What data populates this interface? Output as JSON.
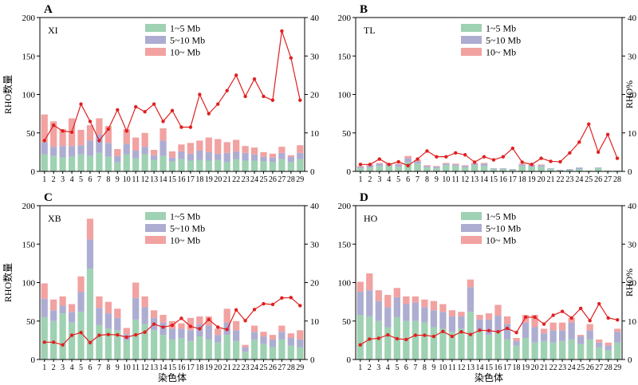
{
  "figure": {
    "xlabel": "染色体",
    "ylabel_left": "RHO数量",
    "ylabel_right": "RHO%",
    "legend": [
      "1~5 Mb",
      "5~10 Mb",
      "10~ Mb"
    ],
    "colors": {
      "s1": "#9fd1b3",
      "s2": "#adadd2",
      "s3": "#f1a2a1",
      "line": "#e02020"
    }
  },
  "chart_data": [
    {
      "type": "bar",
      "panel": "A",
      "name": "XI",
      "categories": [
        "1",
        "2",
        "3",
        "4",
        "5",
        "6",
        "7",
        "8",
        "9",
        "10",
        "11",
        "12",
        "13",
        "14",
        "15",
        "16",
        "17",
        "18",
        "19",
        "20",
        "21",
        "22",
        "23",
        "24",
        "25",
        "26",
        "27",
        "28",
        "29"
      ],
      "series": [
        {
          "name": "1~5 Mb",
          "values": [
            22,
            20,
            18,
            19,
            22,
            20,
            24,
            19,
            12,
            22,
            17,
            22,
            15,
            20,
            13,
            16,
            14,
            15,
            14,
            15,
            12,
            16,
            14,
            14,
            13,
            12,
            16,
            12,
            16
          ]
        },
        {
          "name": "5~10 Mb",
          "values": [
            16,
            12,
            15,
            14,
            12,
            20,
            24,
            18,
            8,
            14,
            10,
            10,
            6,
            20,
            5,
            10,
            9,
            12,
            11,
            8,
            12,
            10,
            10,
            8,
            6,
            6,
            8,
            7,
            8
          ]
        },
        {
          "name": "10~ Mb",
          "values": [
            36,
            33,
            22,
            36,
            20,
            20,
            21,
            22,
            9,
            19,
            17,
            18,
            7,
            16,
            8,
            9,
            14,
            13,
            19,
            19,
            14,
            15,
            9,
            9,
            6,
            5,
            8,
            2,
            10
          ]
        },
        {
          "name": "RHO%",
          "axis": "right",
          "values": [
            8,
            12,
            10.5,
            10.2,
            17.5,
            13,
            8,
            11,
            16,
            10.5,
            16.8,
            15.5,
            17.5,
            13,
            15.8,
            11.5,
            11.5,
            20,
            15,
            17.5,
            21,
            25,
            19.5,
            24,
            19.5,
            18.5,
            36.5,
            29.5,
            18.5
          ]
        }
      ],
      "ylim_left": [
        0,
        200
      ],
      "ylim_right": [
        0,
        40
      ]
    },
    {
      "type": "bar",
      "panel": "B",
      "name": "TL",
      "categories": [
        "1",
        "2",
        "3",
        "4",
        "5",
        "6",
        "7",
        "8",
        "9",
        "10",
        "11",
        "12",
        "13",
        "14",
        "15",
        "16",
        "17",
        "18",
        "19",
        "20",
        "21",
        "22",
        "23",
        "24",
        "25",
        "26",
        "27",
        "28"
      ],
      "series": [
        {
          "name": "1~5 Mb",
          "values": [
            4,
            5,
            7,
            7,
            6,
            12,
            10,
            5,
            4,
            8,
            7,
            5,
            8,
            7,
            3,
            3,
            2,
            7,
            6,
            6,
            3,
            1,
            2,
            3,
            1,
            4,
            1,
            1
          ]
        },
        {
          "name": "5~10 Mb",
          "values": [
            2,
            3,
            3,
            2,
            3,
            5,
            3,
            2,
            2,
            2,
            2,
            2,
            2,
            3,
            1,
            1,
            1,
            2,
            2,
            2,
            1,
            1,
            1,
            2,
            0,
            1,
            0,
            0
          ]
        },
        {
          "name": "10~ Mb",
          "values": [
            1,
            1,
            1,
            1,
            1,
            3,
            2,
            1,
            1,
            1,
            1,
            1,
            1,
            1,
            0,
            0,
            0,
            1,
            1,
            1,
            0,
            0,
            0,
            0,
            0,
            0,
            0,
            0
          ]
        },
        {
          "name": "RHO%",
          "axis": "right",
          "values": [
            1.8,
            1.8,
            3.2,
            1.8,
            2.5,
            1.5,
            3.2,
            5.3,
            3.8,
            3.8,
            4.8,
            4.3,
            2.4,
            3.8,
            3,
            3.8,
            6,
            2.4,
            1.8,
            3.4,
            2.6,
            2.5,
            4.8,
            7.6,
            12.3,
            5,
            9.6,
            3.4
          ]
        }
      ],
      "ylim_left": [
        0,
        200
      ],
      "ylim_right": [
        0,
        40
      ]
    },
    {
      "type": "bar",
      "panel": "C",
      "name": "XB",
      "categories": [
        "1",
        "2",
        "3",
        "4",
        "5",
        "6",
        "7",
        "8",
        "9",
        "10",
        "11",
        "12",
        "13",
        "14",
        "15",
        "16",
        "17",
        "18",
        "19",
        "20",
        "21",
        "22",
        "23",
        "24",
        "25",
        "26",
        "27",
        "28",
        "29"
      ],
      "series": [
        {
          "name": "1~5 Mb",
          "values": [
            55,
            50,
            60,
            48,
            62,
            118,
            45,
            40,
            38,
            25,
            52,
            46,
            38,
            32,
            26,
            28,
            24,
            30,
            26,
            22,
            32,
            24,
            10,
            26,
            20,
            16,
            26,
            18,
            16
          ]
        },
        {
          "name": "5~10 Mb",
          "values": [
            24,
            14,
            10,
            14,
            26,
            38,
            22,
            20,
            16,
            8,
            28,
            22,
            16,
            16,
            14,
            12,
            14,
            16,
            18,
            10,
            16,
            14,
            6,
            10,
            10,
            10,
            10,
            10,
            10
          ]
        },
        {
          "name": "10~ Mb",
          "values": [
            20,
            14,
            12,
            10,
            20,
            27,
            15,
            15,
            12,
            8,
            20,
            14,
            10,
            10,
            10,
            7,
            16,
            10,
            12,
            8,
            18,
            12,
            3,
            8,
            6,
            6,
            8,
            6,
            12
          ]
        },
        {
          "name": "RHO%",
          "axis": "right",
          "values": [
            4.5,
            4.5,
            3.8,
            6.3,
            7,
            4.4,
            6.3,
            6.5,
            6.4,
            5.8,
            6.4,
            7.1,
            9.2,
            8.4,
            8.9,
            10.7,
            8.6,
            8,
            10.4,
            8.4,
            7.8,
            12.9,
            10.1,
            13,
            14.5,
            14.3,
            16,
            16.1,
            14
          ]
        }
      ],
      "ylim_left": [
        0,
        200
      ],
      "ylim_right": [
        0,
        40
      ]
    },
    {
      "type": "bar",
      "panel": "D",
      "name": "HO",
      "categories": [
        "1",
        "2",
        "3",
        "4",
        "5",
        "6",
        "7",
        "8",
        "9",
        "10",
        "11",
        "12",
        "13",
        "14",
        "15",
        "16",
        "17",
        "18",
        "19",
        "20",
        "21",
        "22",
        "23",
        "24",
        "25",
        "26",
        "27",
        "28",
        "29"
      ],
      "series": [
        {
          "name": "1~5 Mb",
          "values": [
            58,
            56,
            50,
            42,
            55,
            50,
            50,
            48,
            42,
            40,
            36,
            40,
            62,
            38,
            32,
            35,
            26,
            18,
            28,
            22,
            24,
            22,
            24,
            26,
            20,
            26,
            16,
            12,
            22
          ]
        },
        {
          "name": "5~10 Mb",
          "values": [
            30,
            34,
            26,
            26,
            26,
            22,
            24,
            20,
            22,
            22,
            20,
            16,
            32,
            14,
            20,
            22,
            20,
            6,
            20,
            20,
            10,
            16,
            14,
            22,
            10,
            12,
            6,
            6,
            14
          ]
        },
        {
          "name": "10~ Mb",
          "values": [
            13,
            22,
            14,
            16,
            12,
            10,
            8,
            10,
            12,
            10,
            8,
            6,
            10,
            6,
            8,
            14,
            10,
            4,
            10,
            16,
            6,
            10,
            10,
            6,
            2,
            8,
            4,
            4,
            4
          ]
        },
        {
          "name": "RHO%",
          "axis": "right",
          "values": [
            3.8,
            5.3,
            5.5,
            6.4,
            5.4,
            5.2,
            6.3,
            6.3,
            6,
            7.3,
            6,
            7.2,
            6.5,
            7.6,
            7.5,
            7.2,
            8.1,
            7,
            11,
            11,
            9.2,
            11.5,
            12.5,
            10.8,
            13.3,
            10.1,
            14.5,
            10.8,
            10.3
          ]
        }
      ],
      "ylim_left": [
        0,
        200
      ],
      "ylim_right": [
        0,
        40
      ]
    }
  ]
}
